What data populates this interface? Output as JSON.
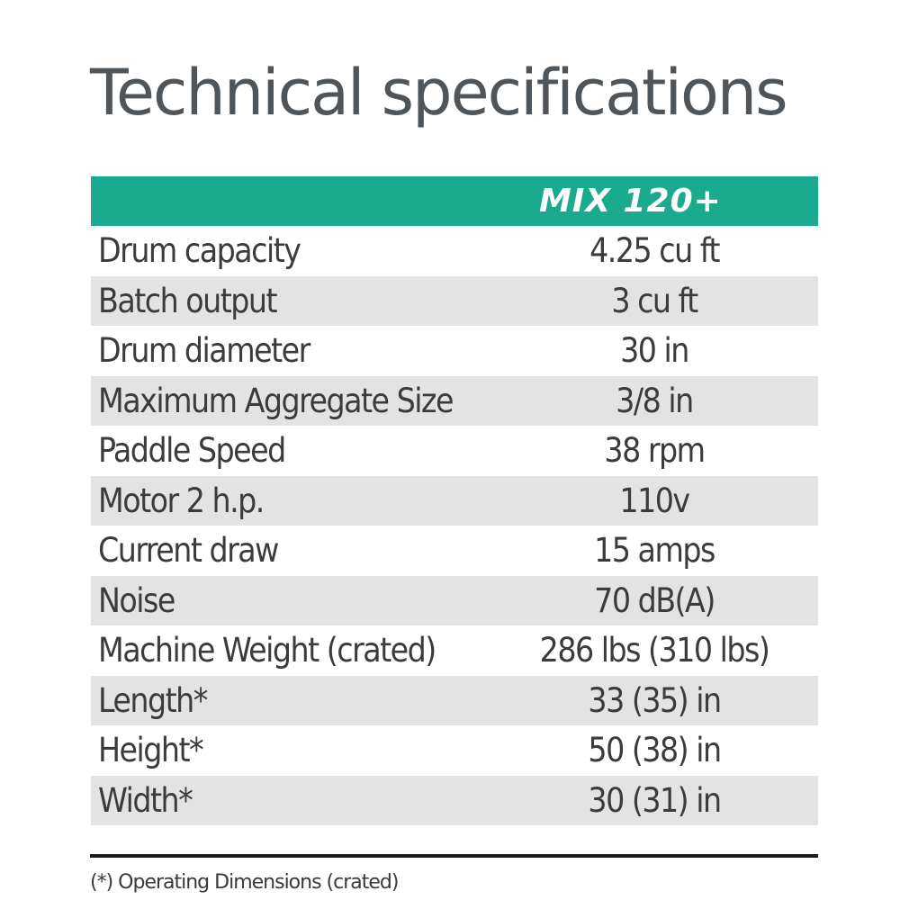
{
  "title": "Technical specifications",
  "accent_color": "#1aaa8d",
  "table": {
    "model": "MIX 120+",
    "rows": [
      {
        "label": "Drum capacity",
        "value": "4.25 cu ft"
      },
      {
        "label": "Batch output",
        "value": "3 cu ft"
      },
      {
        "label": "Drum diameter",
        "value": "30 in"
      },
      {
        "label": "Maximum Aggregate Size",
        "value": "3/8 in"
      },
      {
        "label": "Paddle Speed",
        "value": "38 rpm"
      },
      {
        "label": "Motor 2 h.p.",
        "value": "110v"
      },
      {
        "label": "Current draw",
        "value": "15 amps"
      },
      {
        "label": "Noise",
        "value": "70 dB(A)"
      },
      {
        "label": "Machine Weight (crated)",
        "value": "286 lbs (310 lbs)"
      },
      {
        "label": "Length*",
        "value": "33 (35) in"
      },
      {
        "label": "Height*",
        "value": "50 (38) in"
      },
      {
        "label": "Width*",
        "value": "30 (31) in"
      }
    ]
  },
  "footnote": "(*) Operating Dimensions (crated)"
}
